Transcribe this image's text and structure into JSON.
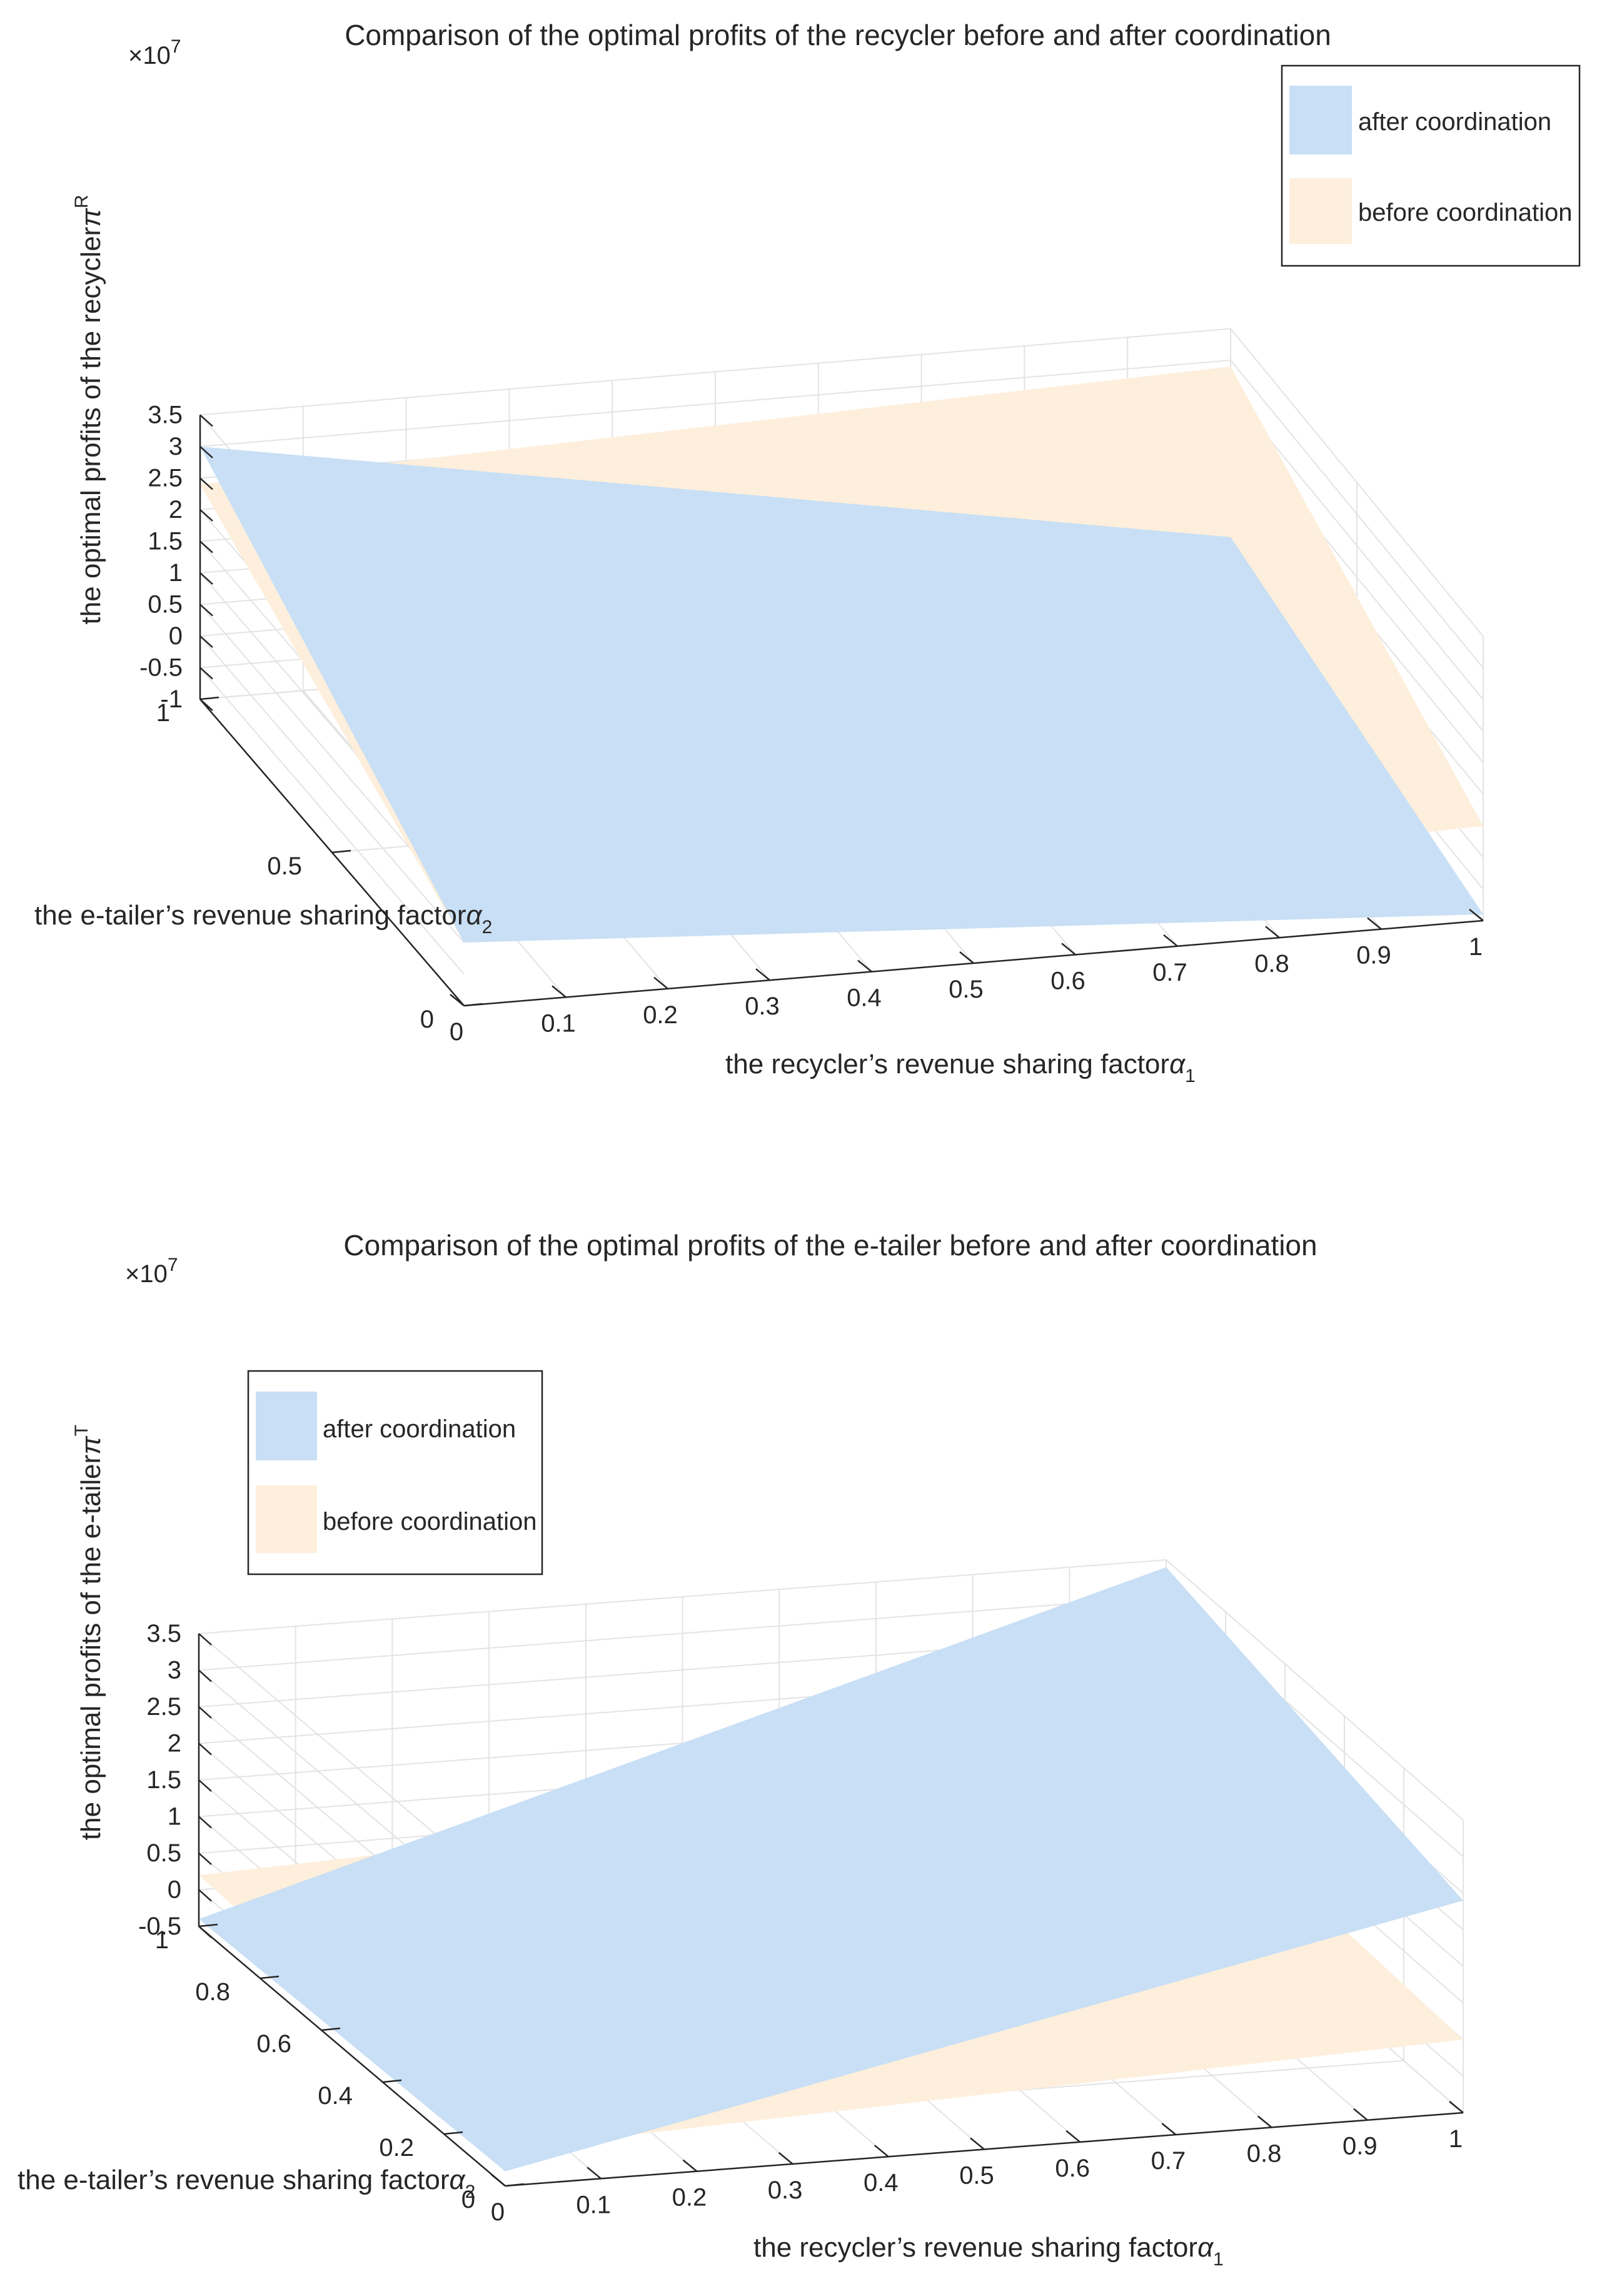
{
  "chart_data": [
    {
      "type": "surface3d",
      "title": "Comparison of the optimal profits of the recycler before and after coordination",
      "exponent_label": "×10",
      "exponent_power": "7",
      "xlabel": "the recycler’s revenue sharing factor",
      "xlabel_symbol": "α",
      "xlabel_sub": "1",
      "ylabel": "the e-tailer’s revenue sharing factor",
      "ylabel_symbol": "α",
      "ylabel_sub": "2",
      "zlabel": "the optimal profits of the recycler",
      "zlabel_symbol": "π",
      "zlabel_sup": "R",
      "xlim": [
        0,
        1
      ],
      "ylim": [
        0,
        1
      ],
      "zlim": [
        -1,
        3.5
      ],
      "x_ticks": [
        "0",
        "0.1",
        "0.2",
        "0.3",
        "0.4",
        "0.5",
        "0.6",
        "0.7",
        "0.8",
        "0.9",
        "1"
      ],
      "y_ticks": [
        "0",
        "0.5",
        "1"
      ],
      "z_ticks": [
        "-1",
        "-0.5",
        "0",
        "0.5",
        "1",
        "1.5",
        "2",
        "2.5",
        "3",
        "3.5"
      ],
      "legend_position": "top-right",
      "series": [
        {
          "name": "after coordination",
          "color": "#c8dff5",
          "corners": {
            "x0y0": 0,
            "x1y0": -0.9,
            "x0y1": 3.0,
            "x1y1": 0.2
          }
        },
        {
          "name": "before coordination",
          "color": "#fdefdc",
          "corners": {
            "x0y0": 0,
            "x1y0": 0.5,
            "x0y1": 2.4,
            "x1y1": 2.9
          }
        }
      ]
    },
    {
      "type": "surface3d",
      "title": "Comparison of the optimal profits of the e-tailer before and after coordination",
      "exponent_label": "×10",
      "exponent_power": "7",
      "xlabel": "the recycler’s revenue sharing factor",
      "xlabel_symbol": "α",
      "xlabel_sub": "1",
      "ylabel": "the e-tailer’s revenue sharing factor",
      "ylabel_symbol": "α",
      "ylabel_sub": "2",
      "zlabel": "the optimal profits of the e-tailer",
      "zlabel_symbol": "π",
      "zlabel_sup": "T",
      "xlim": [
        0,
        1
      ],
      "ylim": [
        0,
        1
      ],
      "zlim": [
        -0.5,
        3.5
      ],
      "x_ticks": [
        "0",
        "0.1",
        "0.2",
        "0.3",
        "0.4",
        "0.5",
        "0.6",
        "0.7",
        "0.8",
        "0.9",
        "1"
      ],
      "y_ticks": [
        "0",
        "0.2",
        "0.4",
        "0.6",
        "0.8",
        "1"
      ],
      "z_ticks": [
        "-0.5",
        "0",
        "0.5",
        "1",
        "1.5",
        "2",
        "2.5",
        "3",
        "3.5"
      ],
      "legend_position": "top-left",
      "series": [
        {
          "name": "after coordination",
          "color": "#c8dff5",
          "corners": {
            "x0y0": -0.3,
            "x1y0": 2.4,
            "x0y1": -0.4,
            "x1y1": 3.4
          }
        },
        {
          "name": "before coordination",
          "color": "#fdefdc",
          "corners": {
            "x0y0": 0,
            "x1y0": 0.5,
            "x0y1": 0.2,
            "x1y1": 0.7
          }
        }
      ]
    }
  ]
}
